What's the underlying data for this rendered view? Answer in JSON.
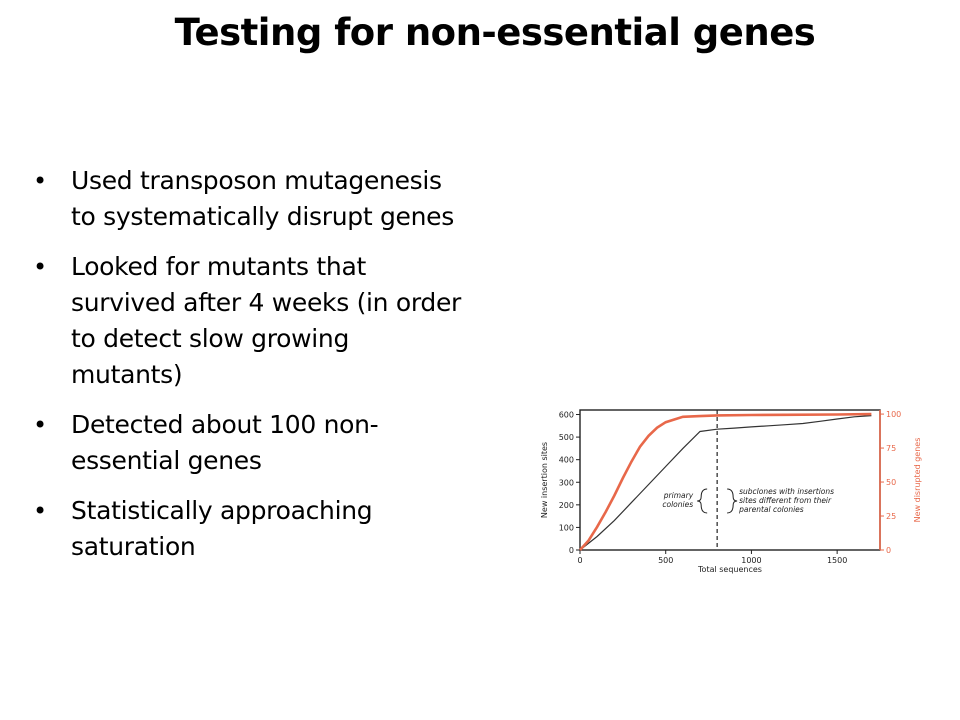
{
  "slide": {
    "title": "Testing for non-essential genes",
    "bullets": [
      "Used transposon mutagenesis\nto systematically disrupt genes",
      "Looked for mutants that\nsurvived after 4 weeks (in order\nto detect slow growing\nmutants)",
      "Detected about 100 non-\nessential genes",
      "Statistically approaching\nsaturation"
    ],
    "bullet_glyph": "•"
  },
  "chart_data": {
    "type": "line",
    "xlabel": "Total sequences",
    "ylabel": "New insertion sites",
    "y2label": "New disrupted genes",
    "xlim": [
      0,
      1750
    ],
    "ylim": [
      0,
      620
    ],
    "y2lim": [
      0,
      103
    ],
    "x_ticks": [
      "0",
      "500",
      "1000",
      "1500"
    ],
    "y_ticks": [
      "0",
      "100",
      "200",
      "300",
      "400",
      "500",
      "600"
    ],
    "y2_ticks": [
      "0",
      "25",
      "50",
      "75",
      "100"
    ],
    "series": [
      {
        "axis": "left",
        "color": "#333333",
        "x": [
          0,
          100,
          200,
          300,
          400,
          500,
          600,
          700,
          800,
          900,
          1000,
          1100,
          1200,
          1300,
          1400,
          1500,
          1600,
          1700
        ],
        "y": [
          0,
          60,
          130,
          210,
          290,
          370,
          450,
          525,
          535,
          540,
          545,
          550,
          555,
          560,
          570,
          580,
          590,
          595
        ]
      },
      {
        "axis": "right",
        "color": "#e8684a",
        "x": [
          0,
          50,
          100,
          150,
          200,
          250,
          300,
          350,
          400,
          450,
          500,
          550,
          600,
          700,
          800,
          1000,
          1200,
          1500,
          1700
        ],
        "y": [
          0,
          7,
          17,
          28,
          40,
          53,
          65,
          76,
          84,
          90,
          94,
          96,
          98,
          98.5,
          99,
          99.3,
          99.5,
          99.7,
          100
        ]
      }
    ],
    "divider_x": 800,
    "annotations": {
      "left": "primary\ncolonies",
      "right": "subclones with insertions\nsites different from their\nparental colonies"
    }
  }
}
